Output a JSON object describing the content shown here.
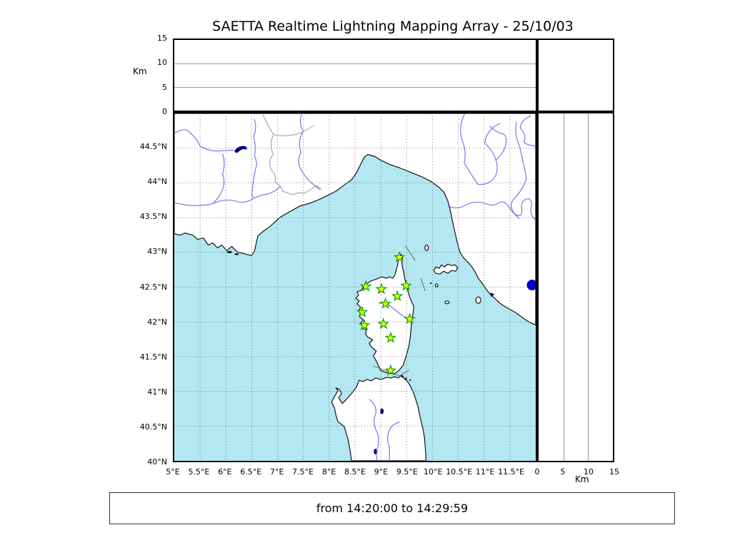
{
  "title": "SAETTA Realtime Lightning Mapping Array - 25/10/03",
  "time_range": "from 14:20:00 to 14:29:59",
  "altitude_axis": {
    "label": "Km",
    "max": 15,
    "ticks": [
      {
        "value": 0,
        "label": "0"
      },
      {
        "value": 5,
        "label": "5"
      },
      {
        "value": 10,
        "label": "10"
      },
      {
        "value": 15,
        "label": "15"
      }
    ],
    "gridlines": [
      5,
      10
    ]
  },
  "map": {
    "lon_min": 5,
    "lon_max": 12,
    "lat_min": 40,
    "lat_max": 45,
    "grid_step_deg": 0.5,
    "lon_ticks": [
      {
        "lon": 5,
        "label": "5°E"
      },
      {
        "lon": 5.5,
        "label": "5.5°E"
      },
      {
        "lon": 6,
        "label": "6°E"
      },
      {
        "lon": 6.5,
        "label": "6.5°E"
      },
      {
        "lon": 7,
        "label": "7°E"
      },
      {
        "lon": 7.5,
        "label": "7.5°E"
      },
      {
        "lon": 8,
        "label": "8°E"
      },
      {
        "lon": 8.5,
        "label": "8.5°E"
      },
      {
        "lon": 9,
        "label": "9°E"
      },
      {
        "lon": 9.5,
        "label": "9.5°E"
      },
      {
        "lon": 10,
        "label": "10°E"
      },
      {
        "lon": 10.5,
        "label": "10.5°E"
      },
      {
        "lon": 11,
        "label": "11°E"
      },
      {
        "lon": 11.5,
        "label": "11.5°E"
      }
    ],
    "lat_ticks": [
      {
        "lat": 44.5,
        "label": "44.5°N"
      },
      {
        "lat": 44,
        "label": "44°N"
      },
      {
        "lat": 43.5,
        "label": "43.5°N"
      },
      {
        "lat": 43,
        "label": "43°N"
      },
      {
        "lat": 42.5,
        "label": "42.5°N"
      },
      {
        "lat": 42,
        "label": "42°N"
      },
      {
        "lat": 41.5,
        "label": "41.5°N"
      },
      {
        "lat": 41,
        "label": "41°N"
      },
      {
        "lat": 40.5,
        "label": "40.5°N"
      },
      {
        "lat": 40,
        "label": "40°N"
      }
    ],
    "colors": {
      "sea": "#b3e7f2",
      "land": "#ffffff",
      "coast": "#111111",
      "river": "#6b6bf0",
      "country_border": "#999999",
      "grid": "#777777",
      "lake": "#000080",
      "station_fill": "#ffff00",
      "station_stroke": "#00a000",
      "source": "#0000cc"
    },
    "stations": [
      {
        "lon": 9.36,
        "lat": 42.93
      },
      {
        "lon": 8.71,
        "lat": 42.51
      },
      {
        "lon": 9.01,
        "lat": 42.47
      },
      {
        "lon": 9.49,
        "lat": 42.52
      },
      {
        "lon": 9.32,
        "lat": 42.37
      },
      {
        "lon": 9.09,
        "lat": 42.26
      },
      {
        "lon": 8.64,
        "lat": 42.14
      },
      {
        "lon": 9.56,
        "lat": 42.04
      },
      {
        "lon": 8.68,
        "lat": 41.95
      },
      {
        "lon": 9.05,
        "lat": 41.97
      },
      {
        "lon": 9.19,
        "lat": 41.77
      },
      {
        "lon": 9.19,
        "lat": 41.3
      }
    ],
    "sources": [
      {
        "lon": 11.93,
        "lat": 42.53
      }
    ]
  }
}
